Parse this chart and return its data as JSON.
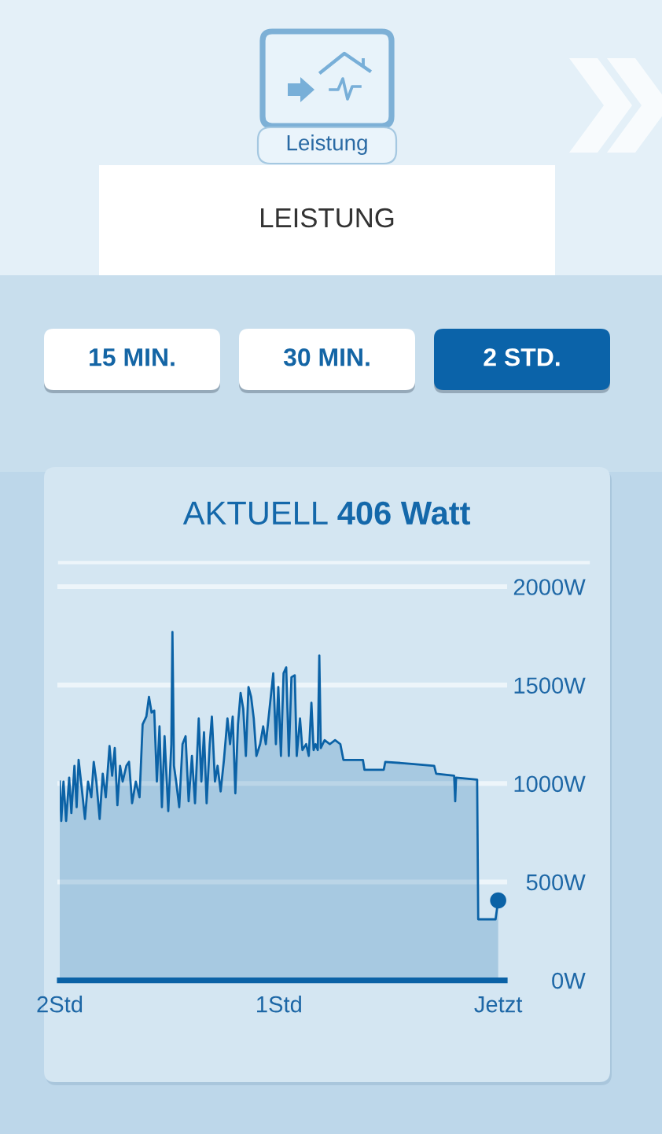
{
  "chart_data": {
    "type": "area",
    "title": "AKTUELL 406 Watt",
    "annotations": [
      "Leistung",
      "LEISTUNG",
      "15 MIN.",
      "30 MIN.",
      "2 STD."
    ],
    "series": [
      {
        "color": "#0b62a6",
        "x": [
          -2.0,
          -1.993,
          -1.983,
          -1.971,
          -1.957,
          -1.947,
          -1.933,
          -1.923,
          -1.914,
          -1.9,
          -1.885,
          -1.871,
          -1.856,
          -1.845,
          -1.833,
          -1.818,
          -1.804,
          -1.79,
          -1.773,
          -1.761,
          -1.749,
          -1.737,
          -1.725,
          -1.713,
          -1.696,
          -1.684,
          -1.67,
          -1.653,
          -1.636,
          -1.622,
          -1.605,
          -1.593,
          -1.581,
          -1.569,
          -1.557,
          -1.545,
          -1.534,
          -1.522,
          -1.505,
          -1.491,
          -1.486,
          -1.479,
          -1.469,
          -1.455,
          -1.44,
          -1.426,
          -1.412,
          -1.397,
          -1.383,
          -1.366,
          -1.354,
          -1.342,
          -1.33,
          -1.316,
          -1.306,
          -1.292,
          -1.28,
          -1.266,
          -1.251,
          -1.235,
          -1.223,
          -1.211,
          -1.199,
          -1.187,
          -1.175,
          -1.163,
          -1.151,
          -1.139,
          -1.127,
          -1.115,
          -1.103,
          -1.086,
          -1.072,
          -1.06,
          -1.043,
          -1.026,
          -1.014,
          -1.003,
          -0.991,
          -0.979,
          -0.967,
          -0.955,
          -0.943,
          -0.928,
          -0.919,
          -0.904,
          -0.893,
          -0.876,
          -0.864,
          -0.852,
          -0.842,
          -0.833,
          -0.823,
          -0.816,
          -0.809,
          -0.792,
          -0.768,
          -0.744,
          -0.72,
          -0.706,
          -0.617,
          -0.61,
          -0.522,
          -0.515,
          -0.395,
          -0.292,
          -0.283,
          -0.201,
          -0.196,
          -0.192,
          -0.096,
          -0.091,
          -0.012,
          0
        ],
        "values": [
          1010,
          810,
          1010,
          810,
          1030,
          850,
          1090,
          880,
          1120,
          980,
          820,
          1010,
          930,
          1110,
          1010,
          820,
          1050,
          930,
          1190,
          1040,
          1180,
          890,
          1090,
          1010,
          1090,
          1110,
          900,
          1010,
          930,
          1300,
          1340,
          1440,
          1360,
          1370,
          1010,
          1290,
          880,
          1240,
          860,
          1200,
          1770,
          1090,
          1010,
          880,
          1200,
          1240,
          910,
          1140,
          900,
          1330,
          1010,
          1260,
          900,
          1200,
          1340,
          1010,
          1090,
          960,
          1120,
          1330,
          1200,
          1340,
          950,
          1300,
          1460,
          1380,
          1140,
          1490,
          1440,
          1330,
          1140,
          1200,
          1290,
          1200,
          1380,
          1560,
          1200,
          1490,
          1140,
          1560,
          1590,
          1140,
          1540,
          1550,
          1140,
          1330,
          1170,
          1200,
          1140,
          1410,
          1170,
          1200,
          1170,
          1650,
          1180,
          1220,
          1200,
          1220,
          1200,
          1120,
          1120,
          1070,
          1070,
          1110,
          1100,
          1090,
          1050,
          1040,
          910,
          1030,
          1020,
          310,
          310,
          406
        ]
      },
      {
        "type": "scatter",
        "color": "#0b62a6",
        "marker": "circle",
        "x": [
          0
        ],
        "values": [
          406
        ]
      }
    ],
    "xlim": [
      -2,
      0.03
    ],
    "xticks": [
      {
        "value": -2,
        "label": "2Std"
      },
      {
        "value": -1,
        "label": "1Std"
      },
      {
        "value": 0,
        "label": "Jetzt"
      }
    ],
    "ylim": [
      0,
      2000
    ],
    "yticks": [
      {
        "value": 0,
        "label": "0W"
      },
      {
        "value": 500,
        "label": "500W"
      },
      {
        "value": 1000,
        "label": "1000W"
      },
      {
        "value": 1500,
        "label": "1500W"
      },
      {
        "value": 2000,
        "label": "2000W"
      }
    ],
    "grid": "y"
  }
}
